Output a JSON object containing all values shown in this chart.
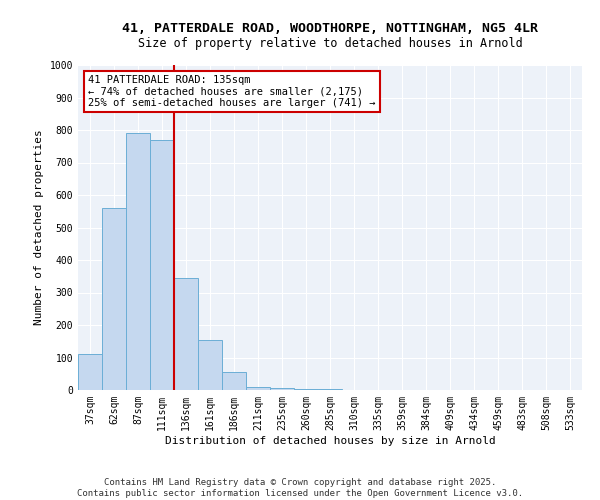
{
  "title_line1": "41, PATTERDALE ROAD, WOODTHORPE, NOTTINGHAM, NG5 4LR",
  "title_line2": "Size of property relative to detached houses in Arnold",
  "xlabel": "Distribution of detached houses by size in Arnold",
  "ylabel": "Number of detached properties",
  "bins": [
    "37sqm",
    "62sqm",
    "87sqm",
    "111sqm",
    "136sqm",
    "161sqm",
    "186sqm",
    "211sqm",
    "235sqm",
    "260sqm",
    "285sqm",
    "310sqm",
    "335sqm",
    "359sqm",
    "384sqm",
    "409sqm",
    "434sqm",
    "459sqm",
    "483sqm",
    "508sqm",
    "533sqm"
  ],
  "values": [
    110,
    560,
    790,
    770,
    345,
    155,
    55,
    10,
    5,
    3,
    2,
    1,
    1,
    1,
    1,
    1,
    1,
    1,
    1,
    1,
    1
  ],
  "bar_color": "#c5d8ef",
  "bar_edge_color": "#6baed6",
  "vline_color": "#cc0000",
  "annotation_text": "41 PATTERDALE ROAD: 135sqm\n← 74% of detached houses are smaller (2,175)\n25% of semi-detached houses are larger (741) →",
  "annotation_box_color": "white",
  "annotation_box_edge": "#cc0000",
  "ylim": [
    0,
    1000
  ],
  "yticks": [
    0,
    100,
    200,
    300,
    400,
    500,
    600,
    700,
    800,
    900,
    1000
  ],
  "footer_line1": "Contains HM Land Registry data © Crown copyright and database right 2025.",
  "footer_line2": "Contains public sector information licensed under the Open Government Licence v3.0.",
  "bg_color": "#edf2f9",
  "grid_color": "#ffffff",
  "title_fontsize": 9.5,
  "subtitle_fontsize": 8.5,
  "axis_fontsize": 8,
  "tick_fontsize": 7,
  "footer_fontsize": 6.5
}
